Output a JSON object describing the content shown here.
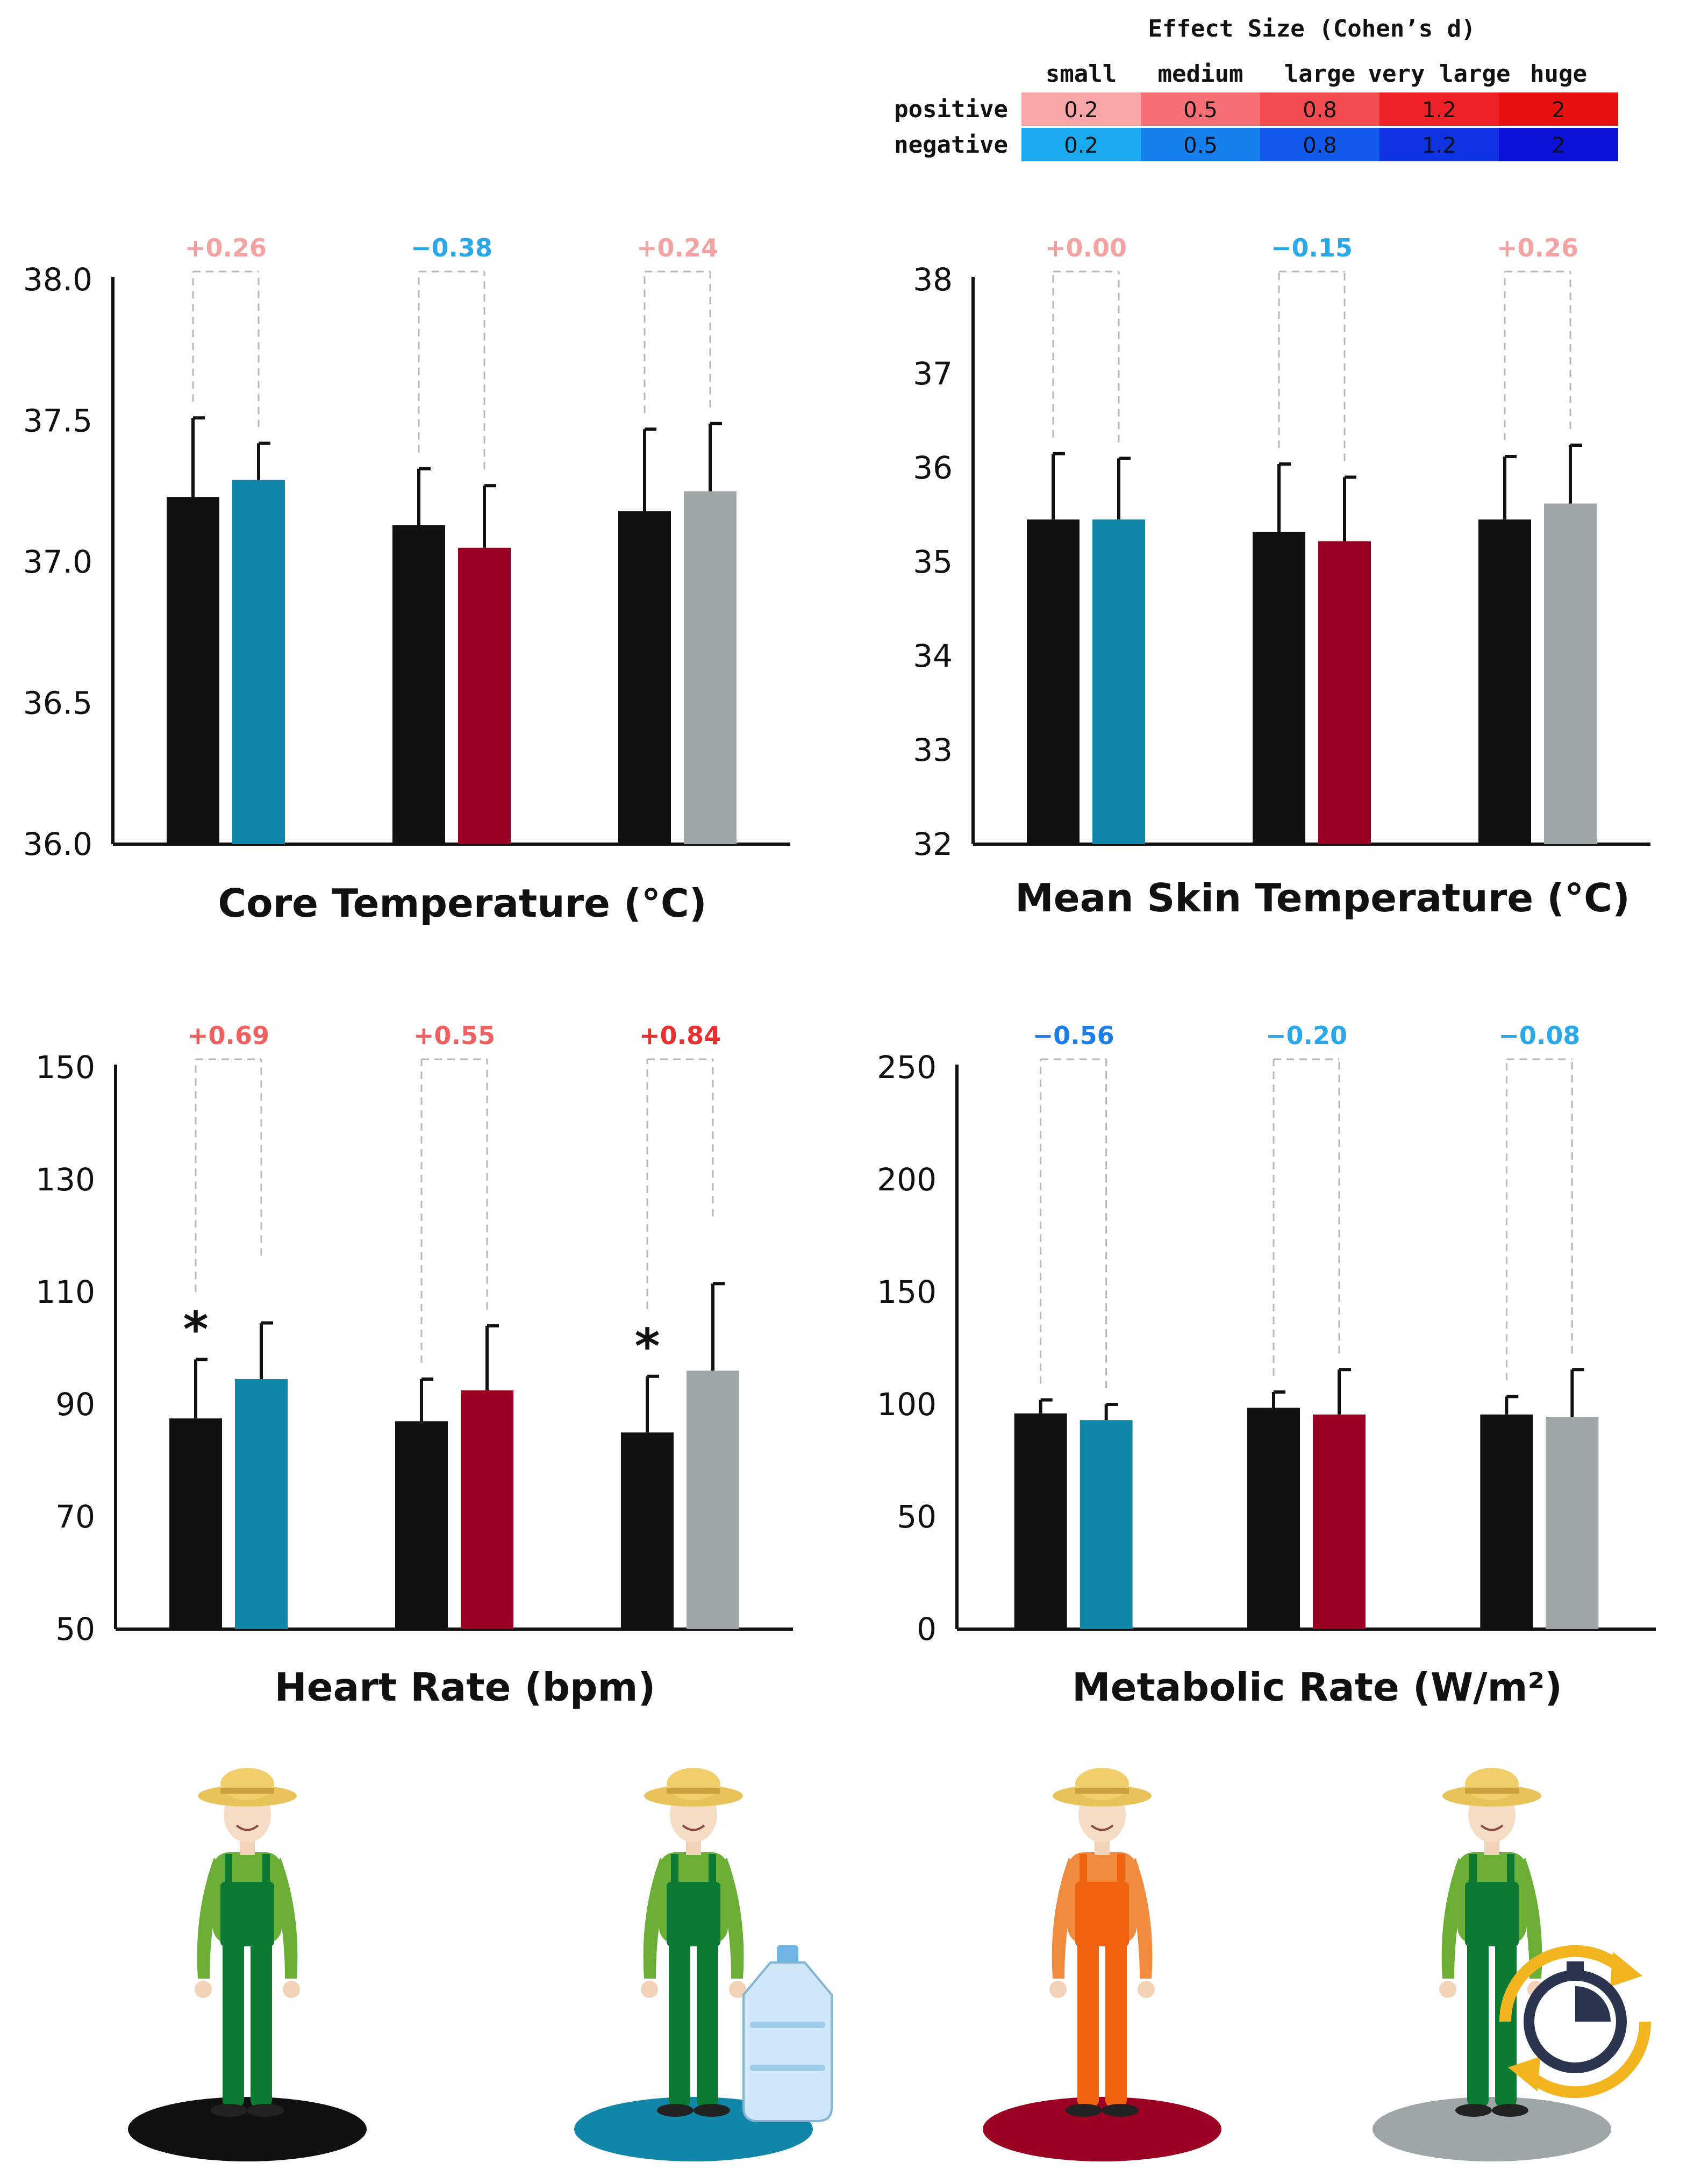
{
  "colors": {
    "control": "#111111",
    "water": "#1186a8",
    "orange_clothing": "#9a0022",
    "breaks": "#9ea6a7",
    "positive_text": [
      "#f4a3a3",
      "#f06060",
      "#e83030",
      "#d61010",
      "#cc0000"
    ],
    "negative_text": [
      "#2aa8e8",
      "#1b7ee8",
      "#1556e0",
      "#1030d8",
      "#0010cc"
    ]
  },
  "legend": {
    "title": "Effect Size (Cohen’s d)",
    "categories": [
      "small",
      "medium",
      "large",
      "very large",
      "huge"
    ],
    "positive_label": "positive",
    "negative_label": "negative",
    "values": [
      "0.2",
      "0.5",
      "0.8",
      "1.2",
      "2"
    ],
    "positive_colors": [
      "#f8a6a8",
      "#f56f74",
      "#f24b4f",
      "#ee2226",
      "#e81111"
    ],
    "negative_colors": [
      "#1aaaf0",
      "#1580ee",
      "#1159e8",
      "#0d34e0",
      "#0a12d8"
    ]
  },
  "chart_data": [
    {
      "type": "bar",
      "xlabel": "Core Temperature (°C)",
      "ylim": [
        36.0,
        38.0
      ],
      "yticks": [
        "36.0",
        "36.5",
        "37.0",
        "37.5",
        "38.0"
      ],
      "groups": [
        {
          "bars": [
            {
              "value": 37.23,
              "error": 0.28,
              "color": "control"
            },
            {
              "value": 37.29,
              "error": 0.13,
              "color": "water"
            }
          ],
          "effect": "+0.26",
          "sign": "positive",
          "level": 0
        },
        {
          "bars": [
            {
              "value": 37.13,
              "error": 0.2,
              "color": "control"
            },
            {
              "value": 37.05,
              "error": 0.22,
              "color": "orange_clothing"
            }
          ],
          "effect": "−0.38",
          "sign": "negative",
          "level": 0
        },
        {
          "bars": [
            {
              "value": 37.18,
              "error": 0.29,
              "color": "control"
            },
            {
              "value": 37.25,
              "error": 0.24,
              "color": "breaks"
            }
          ],
          "effect": "+0.24",
          "sign": "positive",
          "level": 0
        }
      ]
    },
    {
      "type": "bar",
      "xlabel": "Mean Skin Temperature (°C)",
      "ylim": [
        32,
        38
      ],
      "yticks": [
        "32",
        "33",
        "34",
        "35",
        "36",
        "37",
        "38"
      ],
      "groups": [
        {
          "bars": [
            {
              "value": 35.45,
              "error": 0.7,
              "color": "control"
            },
            {
              "value": 35.45,
              "error": 0.65,
              "color": "water"
            }
          ],
          "effect": "+0.00",
          "sign": "positive",
          "level": 0
        },
        {
          "bars": [
            {
              "value": 35.32,
              "error": 0.72,
              "color": "control"
            },
            {
              "value": 35.22,
              "error": 0.68,
              "color": "orange_clothing"
            }
          ],
          "effect": "−0.15",
          "sign": "negative",
          "level": 0
        },
        {
          "bars": [
            {
              "value": 35.45,
              "error": 0.67,
              "color": "control"
            },
            {
              "value": 35.62,
              "error": 0.62,
              "color": "breaks"
            }
          ],
          "effect": "+0.26",
          "sign": "positive",
          "level": 0
        }
      ]
    },
    {
      "type": "bar",
      "xlabel": "Heart Rate (bpm)",
      "ylim": [
        50,
        150
      ],
      "yticks": [
        "50",
        "70",
        "90",
        "110",
        "130",
        "150"
      ],
      "groups": [
        {
          "bars": [
            {
              "value": 87.5,
              "error": 10.5,
              "color": "control",
              "star": "*"
            },
            {
              "value": 94.5,
              "error": 10,
              "color": "water"
            }
          ],
          "effect": "+0.69",
          "sign": "positive",
          "level": 1
        },
        {
          "bars": [
            {
              "value": 87.0,
              "error": 7.5,
              "color": "control"
            },
            {
              "value": 92.5,
              "error": 11.5,
              "color": "orange_clothing"
            }
          ],
          "effect": "+0.55",
          "sign": "positive",
          "level": 1
        },
        {
          "bars": [
            {
              "value": 85.0,
              "error": 10,
              "color": "control",
              "star": "*"
            },
            {
              "value": 96.0,
              "error": 15.5,
              "color": "breaks"
            }
          ],
          "effect": "+0.84",
          "sign": "positive",
          "level": 2
        }
      ]
    },
    {
      "type": "bar",
      "xlabel": "Metabolic Rate (W/m²)",
      "ylim": [
        0,
        250
      ],
      "yticks": [
        "0",
        "50",
        "100",
        "150",
        "200",
        "250"
      ],
      "groups": [
        {
          "bars": [
            {
              "value": 96,
              "error": 6,
              "color": "control"
            },
            {
              "value": 93,
              "error": 7,
              "color": "water"
            }
          ],
          "effect": "−0.56",
          "sign": "negative",
          "level": 1
        },
        {
          "bars": [
            {
              "value": 98.5,
              "error": 7,
              "color": "control"
            },
            {
              "value": 95.5,
              "error": 20,
              "color": "orange_clothing"
            }
          ],
          "effect": "−0.20",
          "sign": "negative",
          "level": 0
        },
        {
          "bars": [
            {
              "value": 95.5,
              "error": 8,
              "color": "control"
            },
            {
              "value": 94.5,
              "error": 21,
              "color": "breaks"
            }
          ],
          "effect": "−0.08",
          "sign": "negative",
          "level": 0
        }
      ]
    }
  ],
  "figures": [
    {
      "shirt": "#6aae36",
      "pants": "#0d7a33",
      "base": "#111111",
      "extra": "none"
    },
    {
      "shirt": "#6aae36",
      "pants": "#0d7a33",
      "base": "#1186a8",
      "extra": "bottle-icon"
    },
    {
      "shirt": "#f08a3c",
      "pants": "#ee6210",
      "base": "#9a0022",
      "extra": "none"
    },
    {
      "shirt": "#6aae36",
      "pants": "#0d7a33",
      "base": "#9ea6a7",
      "extra": "stopwatch-icon"
    }
  ]
}
